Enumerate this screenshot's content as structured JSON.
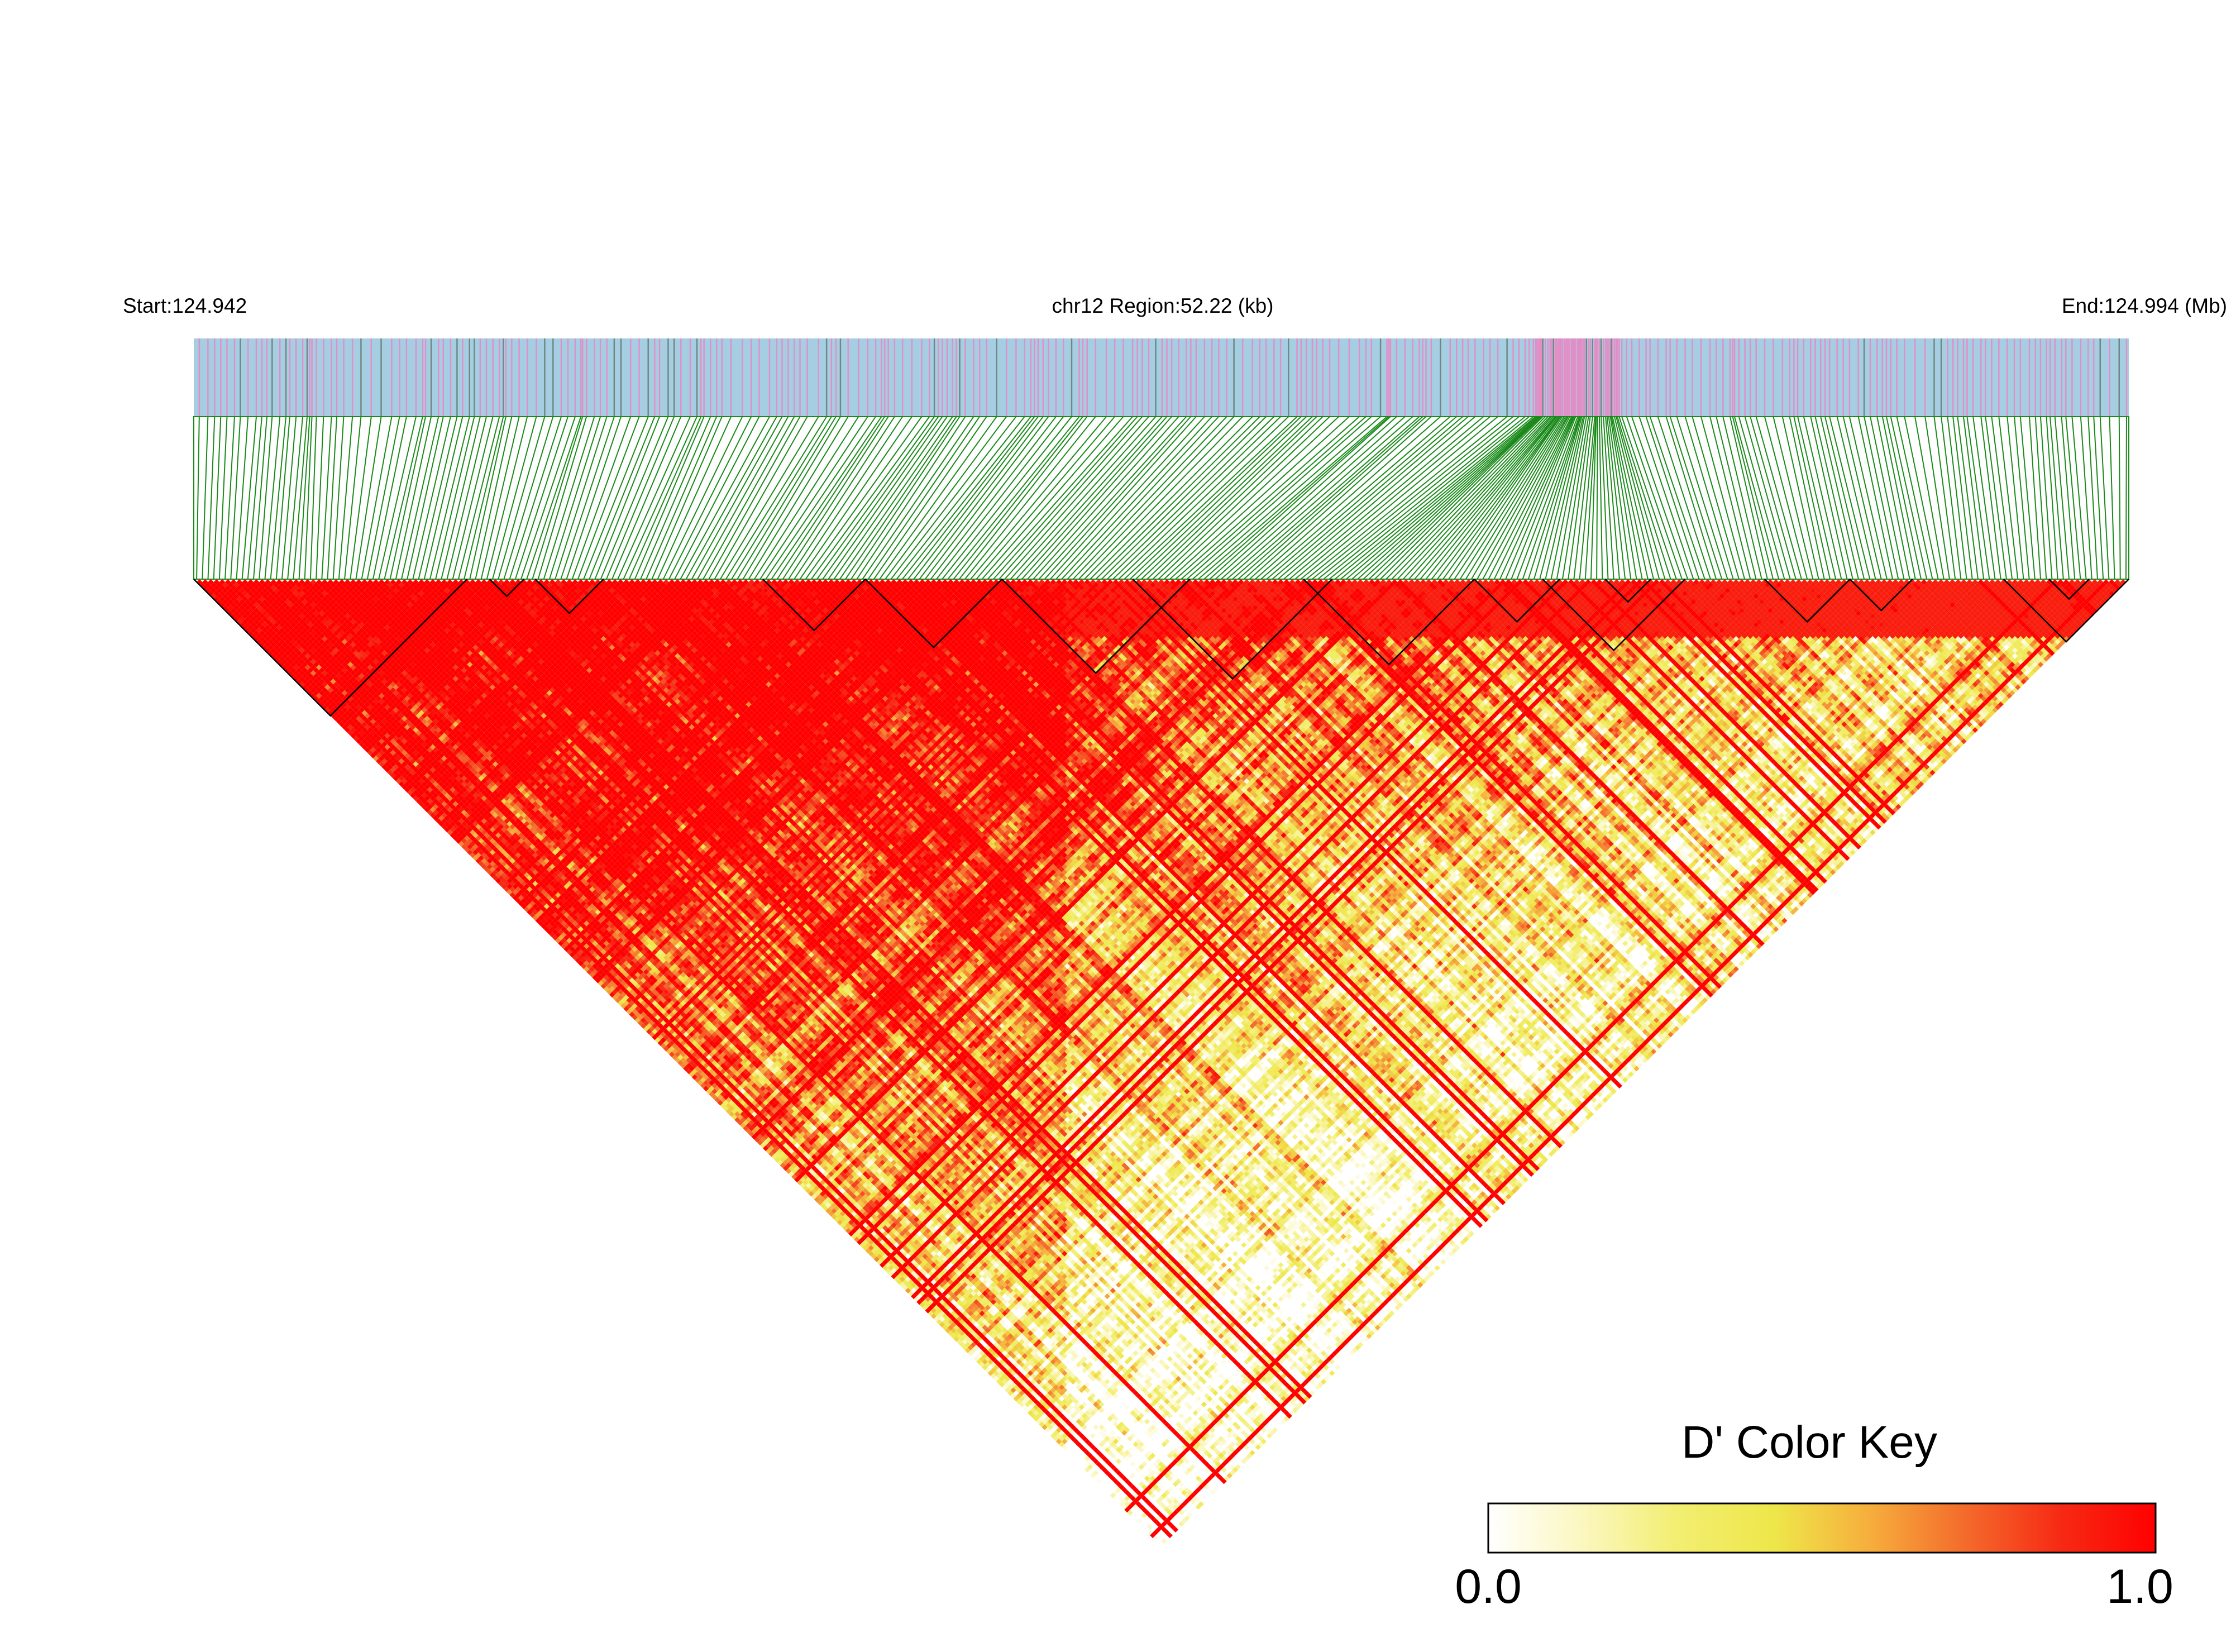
{
  "chart_data": {
    "type": "heatmap",
    "subtype": "ld-triangle",
    "header": {
      "start_label": "Start:124.942",
      "region_label": "chr12 Region:52.22 (kb)",
      "end_label": "End:124.994 (Mb)"
    },
    "chromosome": "chr12",
    "region_kb": 52.22,
    "region_start_mb": 124.942,
    "region_end_mb": 124.994,
    "snp_count": 340,
    "snp_track_colors": {
      "background": "#a6cee3",
      "variant_pink": "#e78ac3",
      "variant_gray": "#6b7f74"
    },
    "connector_color": "#1a8a1a",
    "haplotype_block_snp_ranges": [
      [
        0,
        48
      ],
      [
        52,
        58
      ],
      [
        60,
        72
      ],
      [
        100,
        118
      ],
      [
        118,
        142
      ],
      [
        142,
        175
      ],
      [
        165,
        200
      ],
      [
        195,
        225
      ],
      [
        225,
        240
      ],
      [
        237,
        262
      ],
      [
        248,
        256
      ],
      [
        276,
        291
      ],
      [
        291,
        302
      ],
      [
        318,
        340
      ],
      [
        326,
        333
      ]
    ],
    "metric": "D'",
    "color_key": {
      "title": "D' Color Key",
      "min_label": "0.0",
      "max_label": "1.0",
      "min": 0.0,
      "max": 1.0,
      "stops": [
        "#ffffff",
        "#fbf7bf",
        "#f2ee70",
        "#eee74a",
        "#f6ae3c",
        "#f46b2c",
        "#f62a14",
        "#ff0000"
      ]
    }
  }
}
